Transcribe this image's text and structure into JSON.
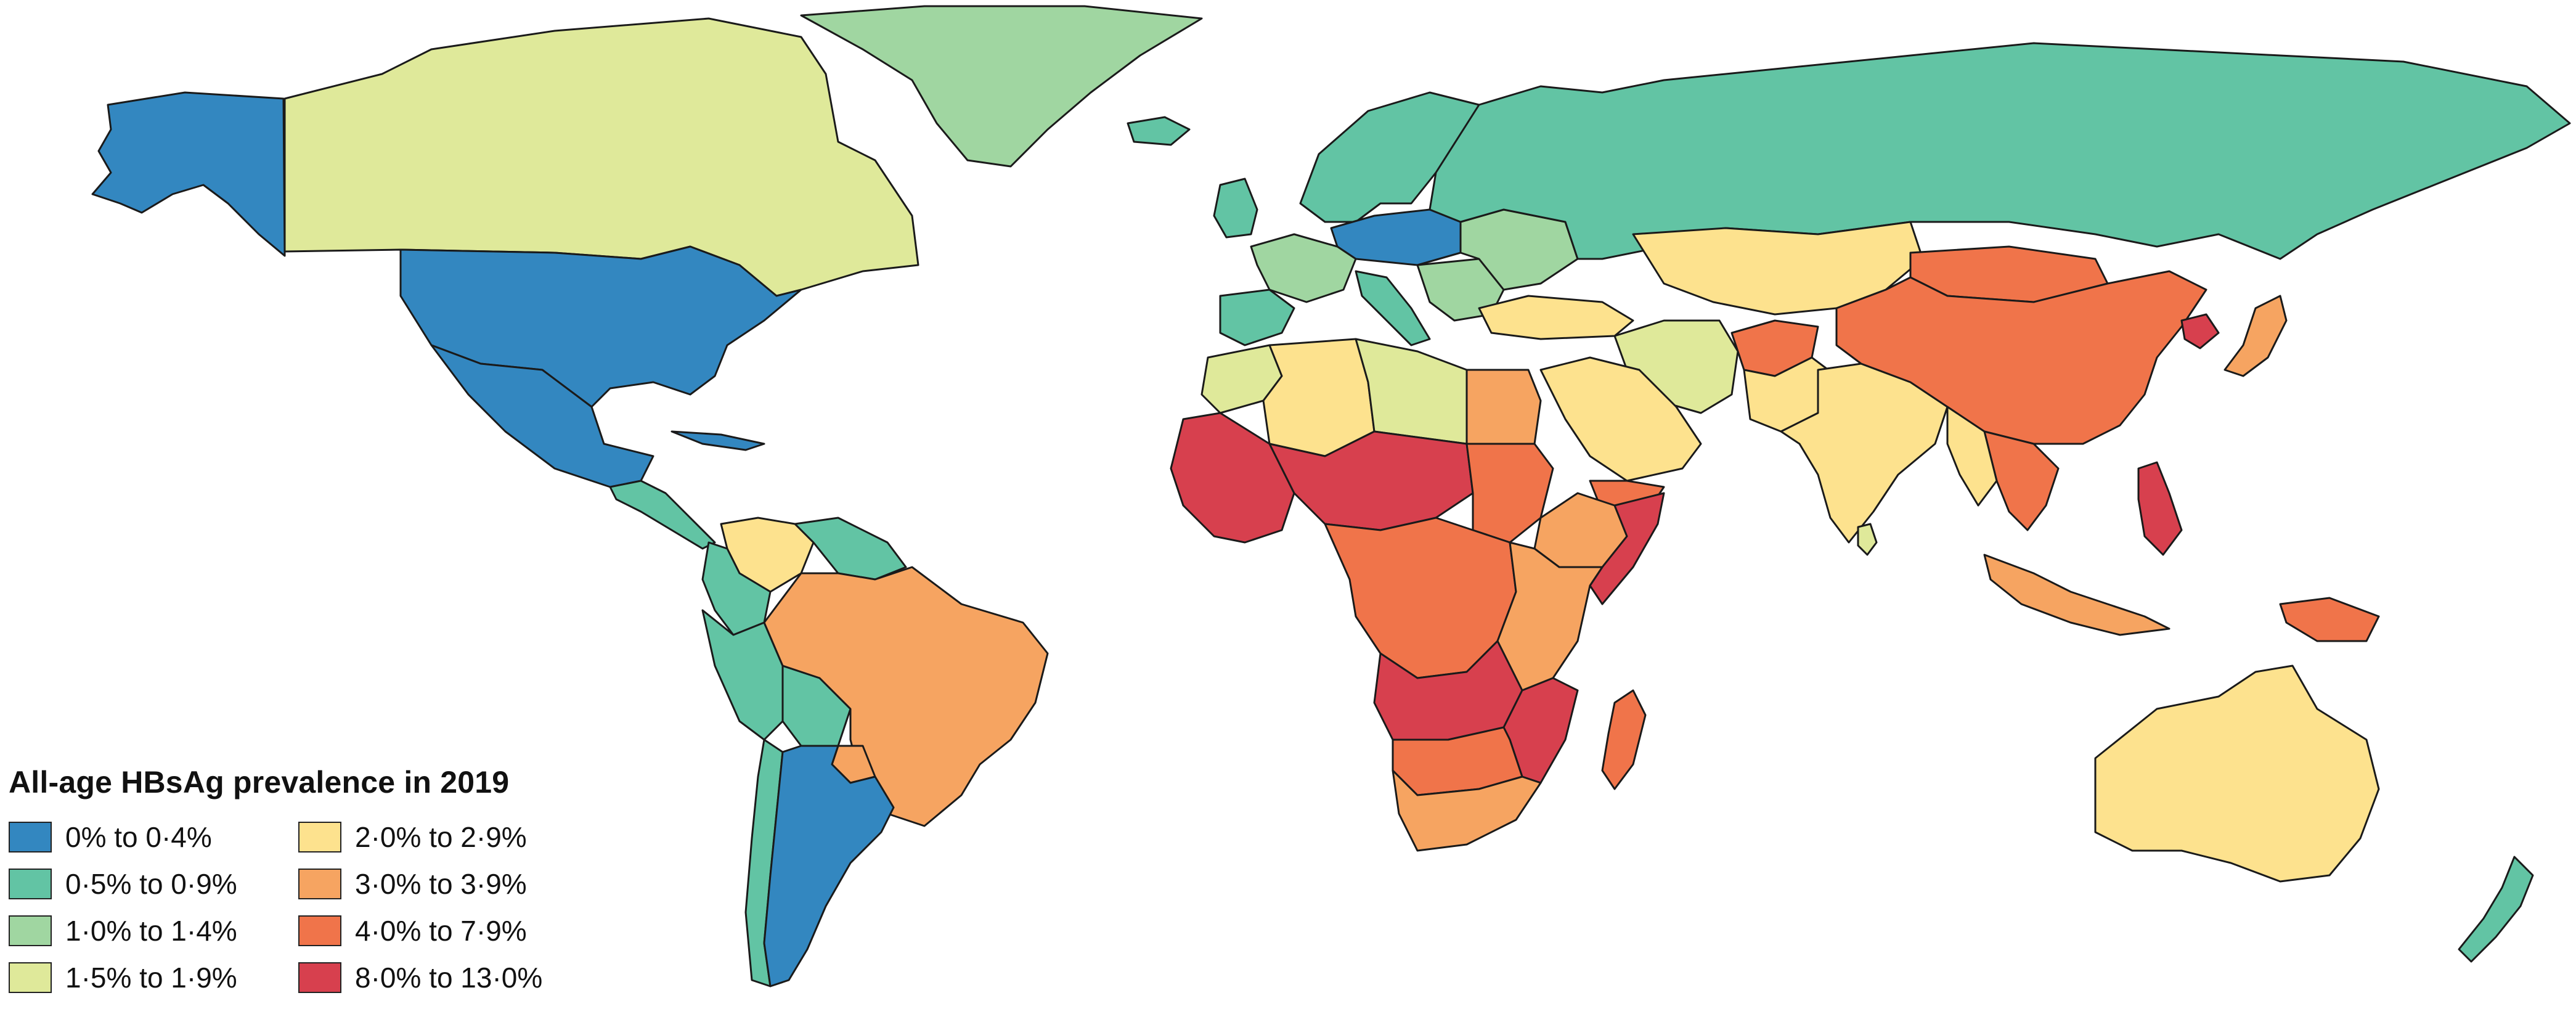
{
  "legend": {
    "title": "All-age HBsAg prevalence in 2019",
    "items": [
      {
        "label": "0% to 0·4%",
        "color": "#3387c0"
      },
      {
        "label": "0·5% to 0·9%",
        "color": "#62c4a4"
      },
      {
        "label": "1·0% to 1·4%",
        "color": "#a0d6a1"
      },
      {
        "label": "1·5% to 1·9%",
        "color": "#dfe99a"
      },
      {
        "label": "2·0% to 2·9%",
        "color": "#fde28e"
      },
      {
        "label": "3·0% to 3·9%",
        "color": "#f6a461"
      },
      {
        "label": "4·0% to 7·9%",
        "color": "#f0744a"
      },
      {
        "label": "8·0% to 13·0%",
        "color": "#d7404e"
      }
    ]
  },
  "regions": [
    {
      "name": "Alaska",
      "category": 0
    },
    {
      "name": "Canada",
      "category": 3
    },
    {
      "name": "Greenland",
      "category": 2
    },
    {
      "name": "United States",
      "category": 0
    },
    {
      "name": "Mexico",
      "category": 0
    },
    {
      "name": "Central America",
      "category": 1
    },
    {
      "name": "Cuba",
      "category": 0
    },
    {
      "name": "Venezuela",
      "category": 4
    },
    {
      "name": "Guiana Shield",
      "category": 1
    },
    {
      "name": "Colombia",
      "category": 1
    },
    {
      "name": "Peru",
      "category": 1
    },
    {
      "name": "Bolivia",
      "category": 1
    },
    {
      "name": "Brazil",
      "category": 5
    },
    {
      "name": "Paraguay",
      "category": 5
    },
    {
      "name": "Chile",
      "category": 1
    },
    {
      "name": "Argentina",
      "category": 0
    },
    {
      "name": "Iceland",
      "category": 1
    },
    {
      "name": "United Kingdom",
      "category": 1
    },
    {
      "name": "Scandinavia",
      "category": 1
    },
    {
      "name": "Germany and Poland",
      "category": 0
    },
    {
      "name": "France",
      "category": 2
    },
    {
      "name": "Iberia",
      "category": 1
    },
    {
      "name": "Italy",
      "category": 1
    },
    {
      "name": "Balkans",
      "category": 2
    },
    {
      "name": "Eastern Europe",
      "category": 2
    },
    {
      "name": "Russia",
      "category": 1
    },
    {
      "name": "Turkey",
      "category": 4
    },
    {
      "name": "Kazakhstan",
      "category": 4
    },
    {
      "name": "Iran",
      "category": 3
    },
    {
      "name": "Afghanistan",
      "category": 6
    },
    {
      "name": "Pakistan",
      "category": 4
    },
    {
      "name": "India",
      "category": 4
    },
    {
      "name": "Sri Lanka",
      "category": 3
    },
    {
      "name": "Mongolia",
      "category": 6
    },
    {
      "name": "China",
      "category": 6
    },
    {
      "name": "North Korea",
      "category": 7
    },
    {
      "name": "Japan",
      "category": 5
    },
    {
      "name": "Southeast Asia",
      "category": 6
    },
    {
      "name": "Myanmar",
      "category": 4
    },
    {
      "name": "Philippines",
      "category": 7
    },
    {
      "name": "Indonesia",
      "category": 5
    },
    {
      "name": "Papua New Guinea",
      "category": 6
    },
    {
      "name": "Australia",
      "category": 4
    },
    {
      "name": "New Zealand",
      "category": 1
    },
    {
      "name": "Morocco",
      "category": 3
    },
    {
      "name": "Algeria",
      "category": 4
    },
    {
      "name": "Libya",
      "category": 3
    },
    {
      "name": "Egypt",
      "category": 5
    },
    {
      "name": "Arabian Peninsula",
      "category": 4
    },
    {
      "name": "Yemen",
      "category": 6
    },
    {
      "name": "West Africa",
      "category": 7
    },
    {
      "name": "Sahel",
      "category": 7
    },
    {
      "name": "Sudan",
      "category": 6
    },
    {
      "name": "Ethiopia",
      "category": 5
    },
    {
      "name": "Somalia",
      "category": 7
    },
    {
      "name": "Central Africa",
      "category": 6
    },
    {
      "name": "East Africa",
      "category": 5
    },
    {
      "name": "Angola and Zambia",
      "category": 7
    },
    {
      "name": "Mozambique",
      "category": 7
    },
    {
      "name": "Namibia and Botswana",
      "category": 6
    },
    {
      "name": "South Africa",
      "category": 5
    },
    {
      "name": "Madagascar",
      "category": 6
    }
  ]
}
